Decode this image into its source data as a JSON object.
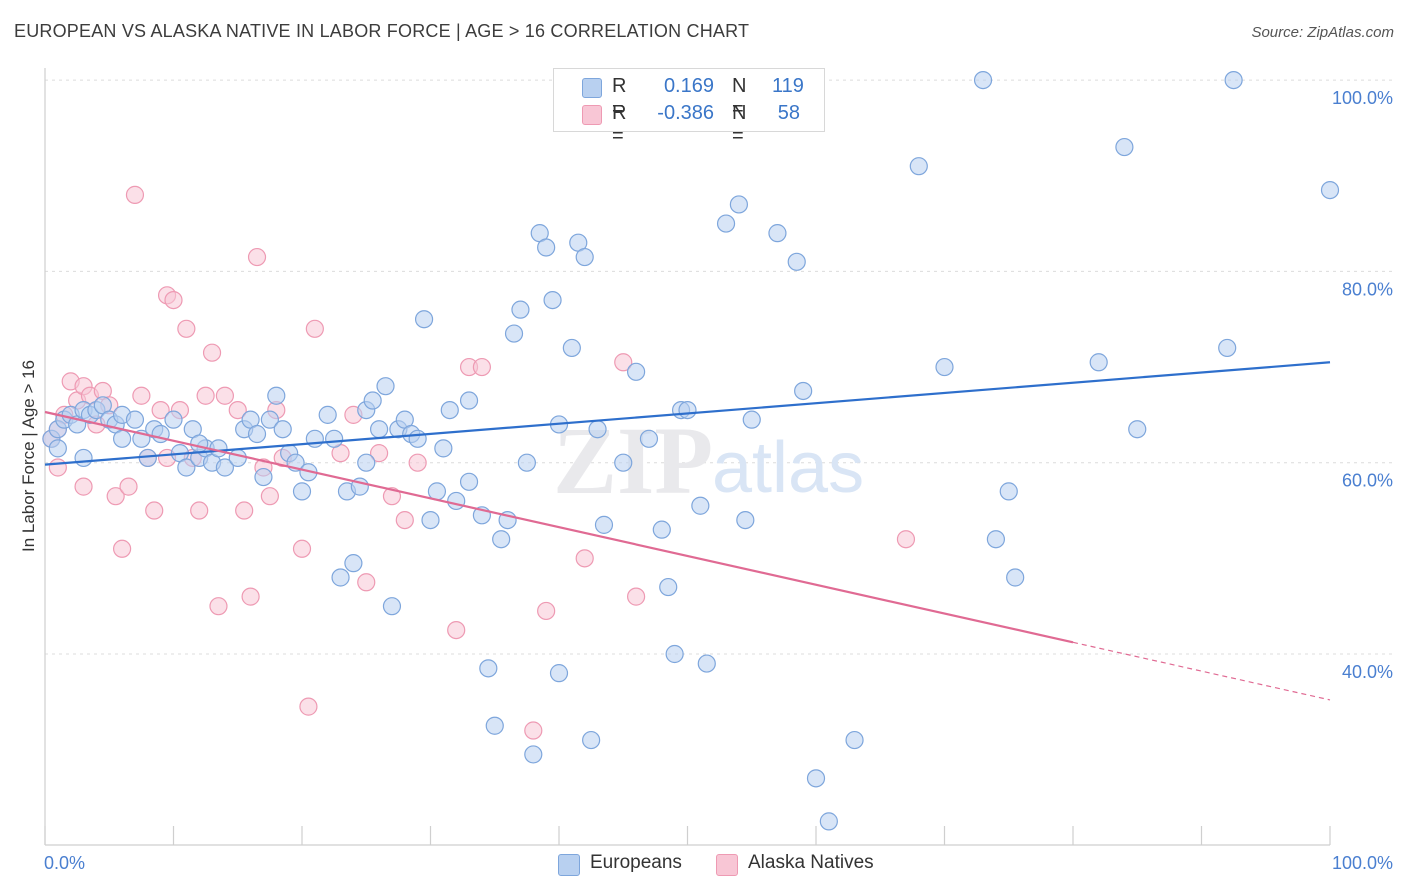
{
  "title": "EUROPEAN VS ALASKA NATIVE IN LABOR FORCE | AGE > 16 CORRELATION CHART",
  "source": "Source: ZipAtlas.com",
  "watermark": {
    "zip": "ZIP",
    "atlas": "atlas"
  },
  "legend": {
    "rows": [
      {
        "r_label": "R =",
        "r_value": "0.169",
        "n_label": "N =",
        "n_value": "119",
        "color": "#a9c7ee"
      },
      {
        "r_label": "R =",
        "r_value": "-0.386",
        "n_label": "N =",
        "n_value": "58",
        "color": "#f4b7c9"
      }
    ]
  },
  "bottom_legend": {
    "europeans": "Europeans",
    "alaska": "Alaska Natives"
  },
  "colors": {
    "blue_fill": "#b8d0f0",
    "blue_stroke": "#7ea6dc",
    "blue_line": "#2e6fcc",
    "pink_fill": "#f8c6d5",
    "pink_stroke": "#ee9ab3",
    "pink_line": "#e06a93",
    "grid": "#dcdcdc",
    "tick_text": "#4a7fd0"
  },
  "chart_data": {
    "type": "scatter",
    "title": "EUROPEAN VS ALASKA NATIVE IN LABOR FORCE | AGE > 16 CORRELATION CHART",
    "xlabel": "",
    "ylabel": "In Labor Force | Age > 16",
    "xlim": [
      0,
      100
    ],
    "ylim": [
      20,
      102
    ],
    "x_tick_labels": [
      "0.0%",
      "100.0%"
    ],
    "y_ticks": [
      40,
      60,
      80,
      100
    ],
    "y_tick_labels": [
      "40.0%",
      "60.0%",
      "80.0%",
      "100.0%"
    ],
    "grid": true,
    "series": [
      {
        "name": "Europeans",
        "r": 0.169,
        "n": 119,
        "trend": {
          "x0": 0,
          "y0": 59.8,
          "x1": 100,
          "y1": 70.5,
          "dash_from": null
        },
        "points": [
          [
            0.5,
            62.5
          ],
          [
            1,
            63.5
          ],
          [
            1.5,
            64.5
          ],
          [
            2,
            65
          ],
          [
            2.5,
            64
          ],
          [
            3,
            65.5
          ],
          [
            3.5,
            65
          ],
          [
            4,
            65.5
          ],
          [
            4.5,
            66
          ],
          [
            5,
            64.5
          ],
          [
            5.5,
            64
          ],
          [
            6,
            65
          ],
          [
            7,
            64.5
          ],
          [
            7.5,
            62.5
          ],
          [
            8,
            60.5
          ],
          [
            8.5,
            63.5
          ],
          [
            9,
            63
          ],
          [
            10,
            64.5
          ],
          [
            10.5,
            61
          ],
          [
            11,
            59.5
          ],
          [
            11.5,
            63.5
          ],
          [
            12,
            60.5
          ],
          [
            12.5,
            61.5
          ],
          [
            13,
            60
          ],
          [
            13.5,
            61.5
          ],
          [
            14,
            59.5
          ],
          [
            15,
            60.5
          ],
          [
            15.5,
            63.5
          ],
          [
            16,
            64.5
          ],
          [
            16.5,
            63
          ],
          [
            17,
            58.5
          ],
          [
            17.5,
            64.5
          ],
          [
            18,
            67
          ],
          [
            18.5,
            63.5
          ],
          [
            19,
            61
          ],
          [
            19.5,
            60
          ],
          [
            20,
            57
          ],
          [
            20.5,
            59
          ],
          [
            21,
            62.5
          ],
          [
            22,
            65
          ],
          [
            22.5,
            62.5
          ],
          [
            23,
            48
          ],
          [
            23.5,
            57
          ],
          [
            24,
            49.5
          ],
          [
            24.5,
            57.5
          ],
          [
            25,
            65.5
          ],
          [
            25.5,
            66.5
          ],
          [
            26,
            63.5
          ],
          [
            26.5,
            68
          ],
          [
            27,
            45
          ],
          [
            27.5,
            63.5
          ],
          [
            28,
            64.5
          ],
          [
            28.5,
            63
          ],
          [
            29,
            62.5
          ],
          [
            29.5,
            75
          ],
          [
            30,
            54
          ],
          [
            30.5,
            57
          ],
          [
            31,
            61.5
          ],
          [
            31.5,
            65.5
          ],
          [
            32,
            56
          ],
          [
            33,
            66.5
          ],
          [
            34,
            54.5
          ],
          [
            34.5,
            38.5
          ],
          [
            35,
            32.5
          ],
          [
            35.5,
            52
          ],
          [
            36,
            54
          ],
          [
            36.5,
            73.5
          ],
          [
            37,
            76
          ],
          [
            37.5,
            60
          ],
          [
            38,
            29.5
          ],
          [
            38.5,
            84
          ],
          [
            39,
            82.5
          ],
          [
            39.5,
            77
          ],
          [
            40,
            38
          ],
          [
            41,
            72
          ],
          [
            41.5,
            83
          ],
          [
            42,
            81.5
          ],
          [
            42.5,
            31
          ],
          [
            43,
            63.5
          ],
          [
            43.5,
            53.5
          ],
          [
            45,
            60
          ],
          [
            46,
            69.5
          ],
          [
            47,
            62.5
          ],
          [
            48,
            53
          ],
          [
            48.5,
            47
          ],
          [
            49,
            40
          ],
          [
            49.5,
            65.5
          ],
          [
            50,
            65.5
          ],
          [
            51,
            55.5
          ],
          [
            51.5,
            39
          ],
          [
            53,
            85
          ],
          [
            54,
            87
          ],
          [
            54.5,
            54
          ],
          [
            55,
            64.5
          ],
          [
            57,
            84
          ],
          [
            58.5,
            81
          ],
          [
            59,
            67.5
          ],
          [
            60,
            27
          ],
          [
            61,
            22.5
          ],
          [
            63,
            31
          ],
          [
            68,
            91
          ],
          [
            70,
            70
          ],
          [
            73,
            100
          ],
          [
            74,
            52
          ],
          [
            75,
            57
          ],
          [
            75.5,
            48
          ],
          [
            82,
            70.5
          ],
          [
            84,
            93
          ],
          [
            85,
            63.5
          ],
          [
            92,
            72
          ],
          [
            92.5,
            100
          ],
          [
            100,
            88.5
          ],
          [
            40,
            64
          ],
          [
            3,
            60.5
          ],
          [
            1,
            61.5
          ],
          [
            6,
            62.5
          ],
          [
            12,
            62
          ],
          [
            25,
            60
          ],
          [
            33,
            58
          ]
        ]
      },
      {
        "name": "Alaska Natives",
        "r": -0.386,
        "n": 58,
        "trend": {
          "x0": 0,
          "y0": 65.3,
          "x1": 100,
          "y1": 35.2,
          "dash_from": 80
        },
        "points": [
          [
            0.5,
            62.5
          ],
          [
            1,
            63.5
          ],
          [
            1.5,
            65
          ],
          [
            2,
            68.5
          ],
          [
            2.5,
            66.5
          ],
          [
            3,
            68
          ],
          [
            3.5,
            67
          ],
          [
            4,
            64
          ],
          [
            4.5,
            67.5
          ],
          [
            5,
            66
          ],
          [
            5.5,
            56.5
          ],
          [
            6,
            51
          ],
          [
            6.5,
            57.5
          ],
          [
            7,
            88
          ],
          [
            7.5,
            67
          ],
          [
            8,
            60.5
          ],
          [
            8.5,
            55
          ],
          [
            9,
            65.5
          ],
          [
            9.5,
            77.5
          ],
          [
            10,
            77
          ],
          [
            10.5,
            65.5
          ],
          [
            11,
            74
          ],
          [
            11.5,
            60.5
          ],
          [
            12,
            55
          ],
          [
            12.5,
            67
          ],
          [
            13,
            71.5
          ],
          [
            13.5,
            45
          ],
          [
            14,
            67
          ],
          [
            15,
            65.5
          ],
          [
            15.5,
            55
          ],
          [
            16,
            46
          ],
          [
            16.5,
            81.5
          ],
          [
            17,
            59.5
          ],
          [
            17.5,
            56.5
          ],
          [
            18,
            65.5
          ],
          [
            18.5,
            60.5
          ],
          [
            20,
            51
          ],
          [
            20.5,
            34.5
          ],
          [
            21,
            74
          ],
          [
            23,
            61
          ],
          [
            24,
            65
          ],
          [
            25,
            47.5
          ],
          [
            26,
            61
          ],
          [
            27,
            56.5
          ],
          [
            28,
            54
          ],
          [
            29,
            60
          ],
          [
            32,
            42.5
          ],
          [
            33,
            70
          ],
          [
            34,
            70
          ],
          [
            38,
            32
          ],
          [
            39,
            44.5
          ],
          [
            42,
            50
          ],
          [
            45,
            70.5
          ],
          [
            46,
            46
          ],
          [
            67,
            52
          ],
          [
            1,
            59.5
          ],
          [
            3,
            57.5
          ],
          [
            9.5,
            60.5
          ]
        ]
      }
    ]
  }
}
